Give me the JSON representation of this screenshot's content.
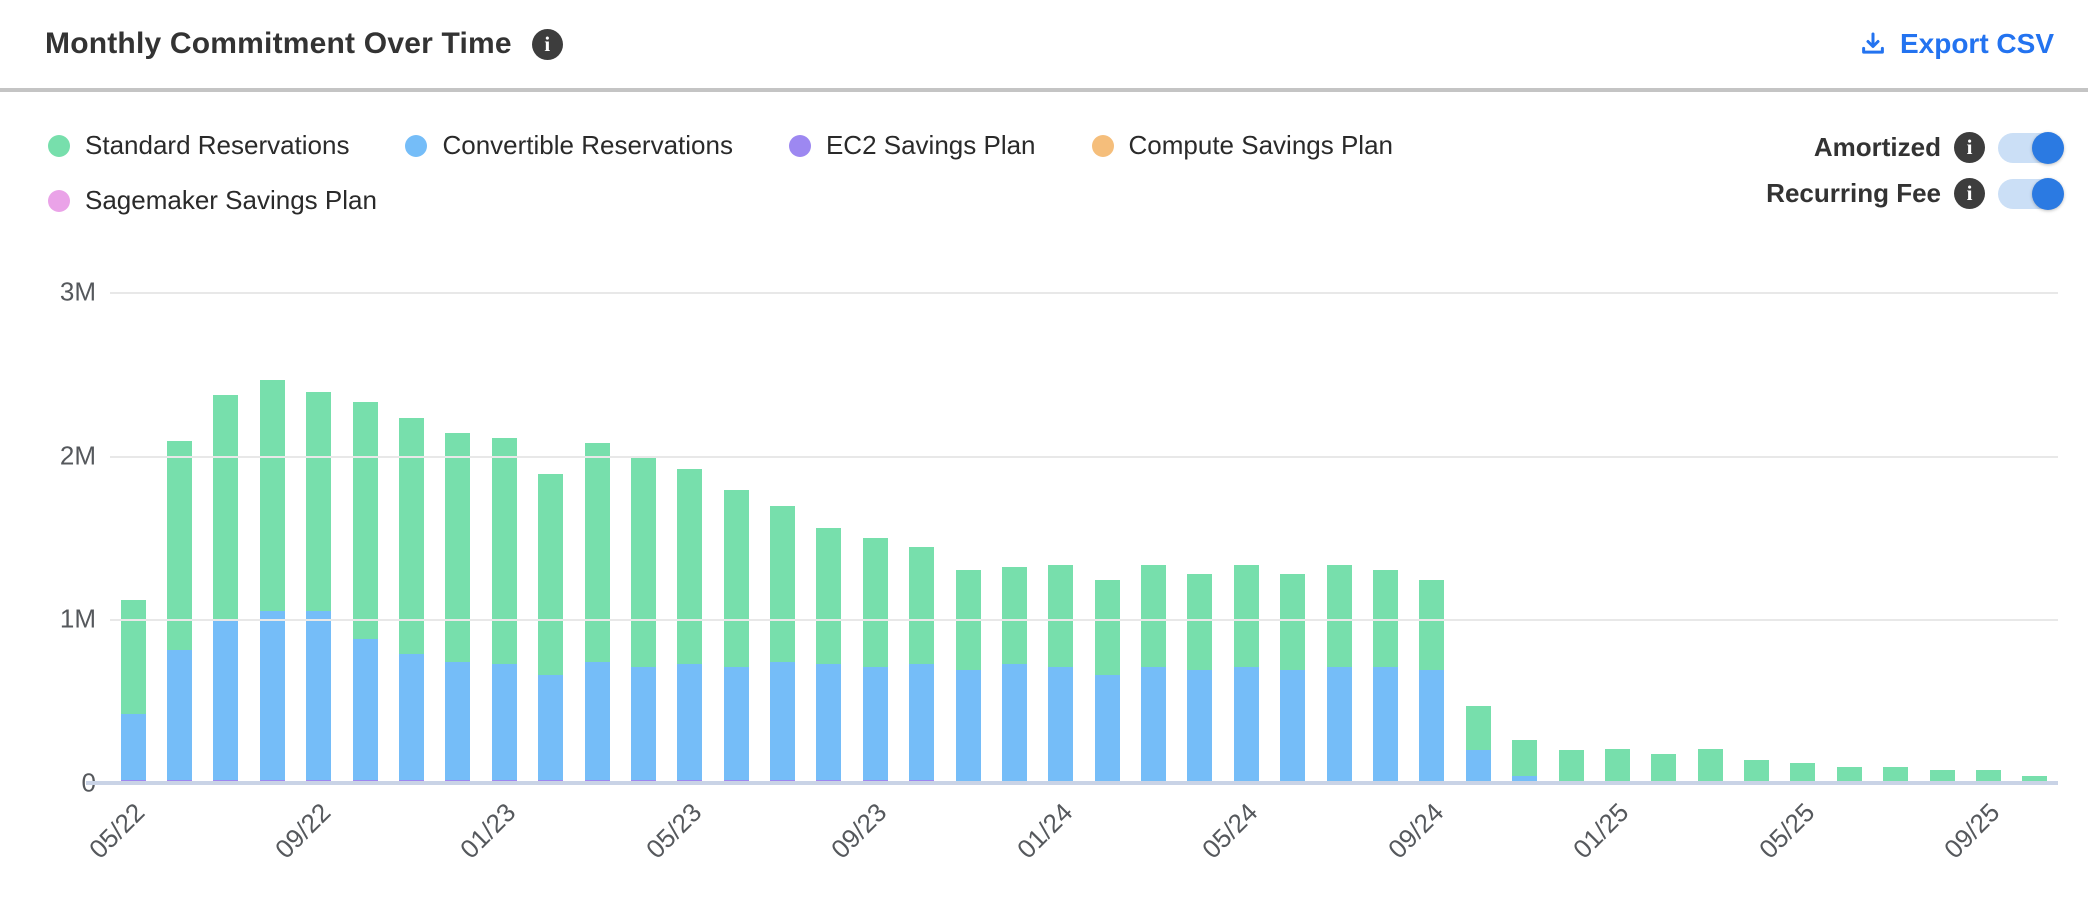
{
  "header": {
    "title": "Monthly Commitment Over Time",
    "export_label": "Export CSV"
  },
  "controls": {
    "toggles": [
      {
        "label": "Amortized",
        "state": "on"
      },
      {
        "label": "Recurring Fee",
        "state": "on"
      }
    ]
  },
  "colors": {
    "accent_blue": "#2373f0",
    "toggle_on": "#2b7ae2",
    "toggle_track": "#cbdff6",
    "info_icon_bg": "#3d3d3d",
    "divider": "#c4c4c4",
    "gridline": "#e8e8e8",
    "baseline": "#c9d3e6"
  },
  "chart_data": {
    "type": "bar",
    "stacked": true,
    "title": "Monthly Commitment Over Time",
    "xlabel": "",
    "ylabel": "",
    "value_unit": "millions",
    "ylim": [
      0,
      3
    ],
    "y_tick_labels": [
      "3M",
      "2M",
      "1M",
      "0"
    ],
    "x_tick_labels": [
      "05/22",
      "09/22",
      "01/23",
      "05/23",
      "09/23",
      "01/24",
      "05/24",
      "09/24",
      "01/25",
      "05/25",
      "09/25"
    ],
    "grid": "horizontal",
    "legend_position": "top-left",
    "categories": [
      "05/22",
      "06/22",
      "07/22",
      "08/22",
      "09/22",
      "10/22",
      "11/22",
      "12/22",
      "01/23",
      "02/23",
      "03/23",
      "04/23",
      "05/23",
      "06/23",
      "07/23",
      "08/23",
      "09/23",
      "10/23",
      "11/23",
      "12/23",
      "01/24",
      "02/24",
      "03/24",
      "04/24",
      "05/24",
      "06/24",
      "07/24",
      "08/24",
      "09/24",
      "10/24",
      "11/24",
      "12/24",
      "01/25",
      "02/25",
      "03/25",
      "04/25",
      "05/25",
      "06/25",
      "07/25",
      "08/25",
      "09/25",
      "10/25"
    ],
    "stack_bottom_to_top": [
      "EC2 Savings Plan",
      "Convertible Reservations",
      "Standard Reservations",
      "Compute Savings Plan",
      "Sagemaker Savings Plan"
    ],
    "series": [
      {
        "name": "Standard Reservations",
        "color": "#77dfac",
        "values": [
          0.7,
          1.28,
          1.37,
          1.41,
          1.34,
          1.45,
          1.44,
          1.4,
          1.38,
          1.23,
          1.34,
          1.29,
          1.19,
          1.08,
          0.95,
          0.83,
          0.79,
          0.71,
          0.61,
          0.59,
          0.62,
          0.58,
          0.62,
          0.59,
          0.62,
          0.59,
          0.62,
          0.59,
          0.55,
          0.27,
          0.22,
          0.2,
          0.21,
          0.18,
          0.21,
          0.14,
          0.12,
          0.1,
          0.1,
          0.08,
          0.08,
          0.04
        ]
      },
      {
        "name": "Convertible Reservations",
        "color": "#75bdf8",
        "values": [
          0.4,
          0.79,
          0.98,
          1.03,
          1.03,
          0.86,
          0.77,
          0.72,
          0.71,
          0.64,
          0.72,
          0.69,
          0.71,
          0.69,
          0.72,
          0.71,
          0.69,
          0.71,
          0.68,
          0.73,
          0.71,
          0.66,
          0.71,
          0.69,
          0.71,
          0.69,
          0.71,
          0.71,
          0.69,
          0.2,
          0.04,
          0,
          0,
          0,
          0,
          0,
          0,
          0,
          0,
          0,
          0,
          0
        ]
      },
      {
        "name": "EC2 Savings Plan",
        "color": "#9d88f1",
        "values": [
          0.02,
          0.02,
          0.02,
          0.02,
          0.02,
          0.02,
          0.02,
          0.02,
          0.02,
          0.02,
          0.02,
          0.02,
          0.02,
          0.02,
          0.02,
          0.02,
          0.02,
          0.02,
          0.01,
          0,
          0,
          0,
          0,
          0,
          0,
          0,
          0,
          0,
          0,
          0,
          0,
          0,
          0,
          0,
          0,
          0,
          0,
          0,
          0,
          0,
          0,
          0
        ]
      },
      {
        "name": "Compute Savings Plan",
        "color": "#f5be7b",
        "values": [
          0,
          0,
          0,
          0,
          0,
          0,
          0,
          0,
          0,
          0,
          0,
          0,
          0,
          0,
          0,
          0,
          0,
          0,
          0,
          0,
          0,
          0,
          0,
          0,
          0,
          0,
          0,
          0,
          0,
          0,
          0,
          0,
          0,
          0,
          0,
          0,
          0,
          0,
          0,
          0,
          0,
          0
        ]
      },
      {
        "name": "Sagemaker Savings Plan",
        "color": "#eaa3e8",
        "values": [
          0,
          0,
          0,
          0,
          0,
          0,
          0,
          0,
          0,
          0,
          0,
          0,
          0,
          0,
          0,
          0,
          0,
          0,
          0,
          0,
          0,
          0,
          0,
          0,
          0,
          0,
          0,
          0,
          0,
          0,
          0,
          0,
          0,
          0,
          0,
          0,
          0,
          0,
          0,
          0,
          0,
          0
        ]
      }
    ]
  }
}
